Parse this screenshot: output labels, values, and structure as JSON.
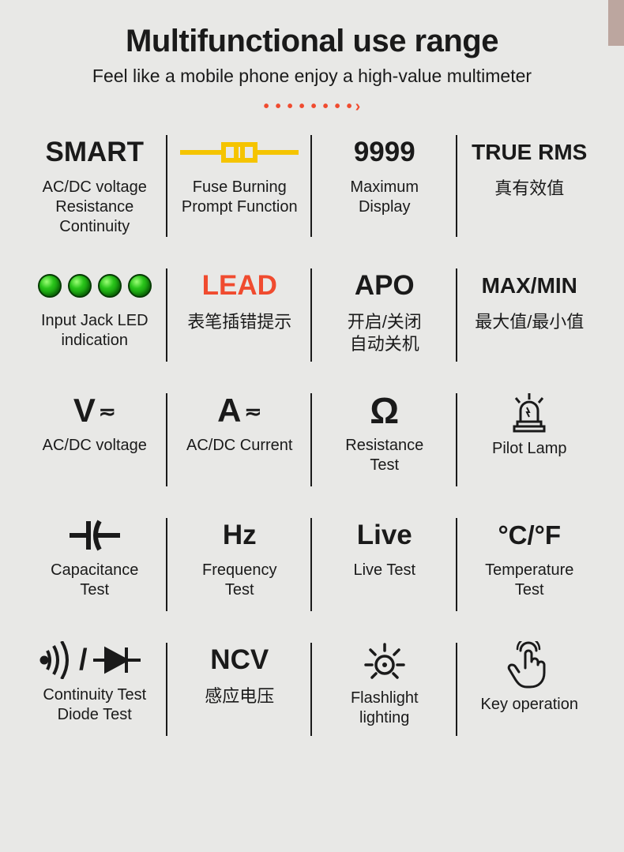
{
  "header": {
    "title": "Multifunctional use range",
    "subtitle": "Feel like a mobile phone enjoy a high-value multimeter"
  },
  "accent_color": "#f04b2f",
  "led_green": "#29c41a",
  "fuse_yellow": "#f5c400",
  "cells": [
    {
      "head": "SMART",
      "desc": "AC/DC voltage\nResistance\nContinuity"
    },
    {
      "head": "",
      "desc": "Fuse Burning\nPrompt Function"
    },
    {
      "head": "9999",
      "desc": "Maximum\nDisplay"
    },
    {
      "head": "TRUE RMS",
      "desc": "真有效值"
    },
    {
      "head": "",
      "desc": "Input Jack LED\nindication"
    },
    {
      "head": "LEAD",
      "desc": "表笔插错提示"
    },
    {
      "head": "APO",
      "desc": "开启/关闭\n自动关机"
    },
    {
      "head": "MAX/MIN",
      "desc": "最大值/最小值"
    },
    {
      "head": "V≂",
      "desc": "AC/DC voltage"
    },
    {
      "head": "A≂",
      "desc": "AC/DC Current"
    },
    {
      "head": "Ω",
      "desc": "Resistance\nTest"
    },
    {
      "head": "",
      "desc": "Pilot Lamp"
    },
    {
      "head": "",
      "desc": "Capacitance\nTest"
    },
    {
      "head": "Hz",
      "desc": "Frequency\nTest"
    },
    {
      "head": "Live",
      "desc": "Live Test"
    },
    {
      "head": "°C/°F",
      "desc": "Temperature\nTest"
    },
    {
      "head": "",
      "desc": "Continuity Test\nDiode Test"
    },
    {
      "head": "NCV",
      "desc": "感应电压"
    },
    {
      "head": "",
      "desc": "Flashlight\nlighting"
    },
    {
      "head": "",
      "desc": "Key operation"
    }
  ]
}
